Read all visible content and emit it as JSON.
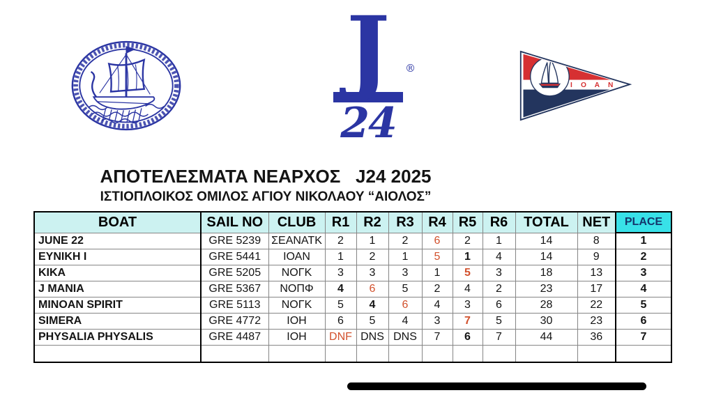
{
  "colors": {
    "logo_blue": "#2b35a3",
    "header_bg": "#ccf2f1",
    "place_bg": "#38e1e8",
    "place_text": "#14356b",
    "discard_red": "#d2512d",
    "pennant_red": "#d63032",
    "pennant_navy": "#23355e"
  },
  "logos": {
    "left": "ancient-greek-ship-oval-emblem",
    "j24_j": "J",
    "j24_reg": "®",
    "j24_num": "24",
    "pennant_letters": "Ι Ο Α Ν"
  },
  "title": "ΑΠΟΤΕΛΕΣΜΑΤΑ ΝΕΑΡΧΟΣ   J24 2025",
  "subtitle": "ΙΣΤΙΟΠΛΟΙΚΟΣ ΟΜΙΛΟΣ ΑΓΙΟΥ ΝΙΚΟΛΑΟΥ “ΑΙΟΛΟΣ”",
  "table": {
    "headers": [
      "BOAT",
      "SAIL NO",
      "CLUB",
      "R1",
      "R2",
      "R3",
      "R4",
      "R5",
      "R6",
      "TOTAL",
      "NET",
      "PLACE"
    ],
    "rows": [
      {
        "boat": "JUNE 22",
        "sail_no": "GRE 5239",
        "club": "ΣΕΑΝΑΤΚ",
        "races": [
          {
            "v": "2"
          },
          {
            "v": "1"
          },
          {
            "v": "2"
          },
          {
            "v": "6",
            "red": true
          },
          {
            "v": "2"
          },
          {
            "v": "1"
          }
        ],
        "total": "14",
        "net": "8",
        "place": "1"
      },
      {
        "boat": "ΕΥΝΙΚΗ Ι",
        "sail_no": "GRE 5441",
        "club": "ΙΟΑΝ",
        "races": [
          {
            "v": "1"
          },
          {
            "v": "2"
          },
          {
            "v": "1"
          },
          {
            "v": "5",
            "red": true
          },
          {
            "v": "1",
            "bold": true
          },
          {
            "v": "4"
          }
        ],
        "total": "14",
        "net": "9",
        "place": "2"
      },
      {
        "boat": "ΚΙΚΑ",
        "sail_no": "GRE 5205",
        "club": "ΝΟΓΚ",
        "races": [
          {
            "v": "3"
          },
          {
            "v": "3"
          },
          {
            "v": "3"
          },
          {
            "v": "1"
          },
          {
            "v": "5",
            "red": true,
            "bold": true
          },
          {
            "v": "3"
          }
        ],
        "total": "18",
        "net": "13",
        "place": "3"
      },
      {
        "boat": "J MANIA",
        "sail_no": "GRE 5367",
        "club": "ΝΟΠΦ",
        "races": [
          {
            "v": "4",
            "bold": true
          },
          {
            "v": "6",
            "red": true
          },
          {
            "v": "5"
          },
          {
            "v": "2"
          },
          {
            "v": "4"
          },
          {
            "v": "2"
          }
        ],
        "total": "23",
        "net": "17",
        "place": "4"
      },
      {
        "boat": "MINOAN SPIRIT",
        "sail_no": "GRE 5113",
        "club": "ΝΟΓΚ",
        "races": [
          {
            "v": "5"
          },
          {
            "v": "4",
            "bold": true
          },
          {
            "v": "6",
            "red": true
          },
          {
            "v": "4"
          },
          {
            "v": "3"
          },
          {
            "v": "6"
          }
        ],
        "total": "28",
        "net": "22",
        "place": "5"
      },
      {
        "boat": "SIMERA",
        "sail_no": "GRE 4772",
        "club": "ΙΟΗ",
        "races": [
          {
            "v": "6"
          },
          {
            "v": "5"
          },
          {
            "v": "4"
          },
          {
            "v": "3"
          },
          {
            "v": "7",
            "red": true,
            "bold": true
          },
          {
            "v": "5"
          }
        ],
        "total": "30",
        "net": "23",
        "place": "6"
      },
      {
        "boat": "PHYSALIA PHYSALIS",
        "sail_no": "GRE 4487",
        "club": "ΙΟΗ",
        "races": [
          {
            "v": "DNF",
            "red": true
          },
          {
            "v": "DNS"
          },
          {
            "v": "DNS"
          },
          {
            "v": "7"
          },
          {
            "v": "6",
            "bold": true
          },
          {
            "v": "7"
          }
        ],
        "total": "44",
        "net": "36",
        "place": "7"
      }
    ]
  }
}
